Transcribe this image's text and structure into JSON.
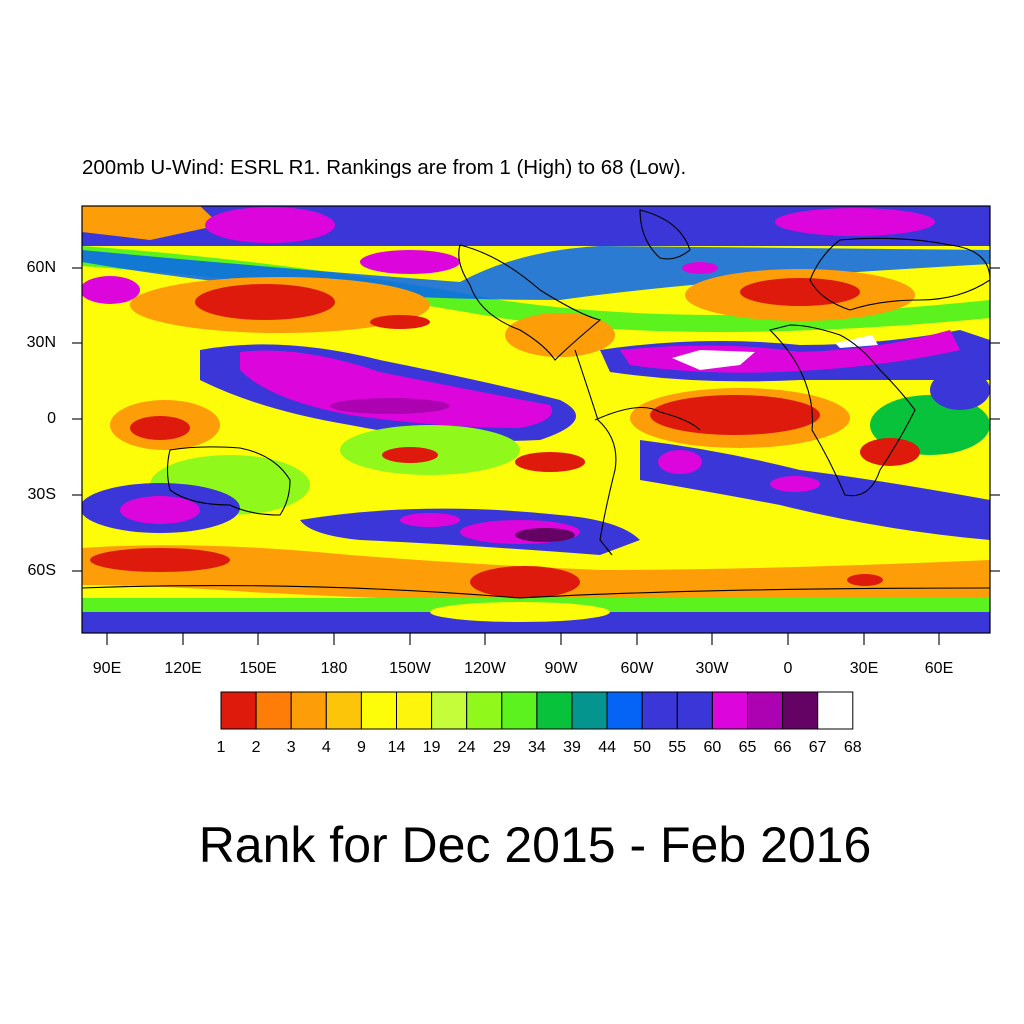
{
  "title": "200mb U-Wind: ESRL R1. Rankings are from 1 (High) to 68 (Low).",
  "bottom_title": "Rank for Dec 2015 - Feb 2016",
  "lat_labels": [
    "60N",
    "30N",
    "0",
    "30S",
    "60S"
  ],
  "lon_labels": [
    "90E",
    "120E",
    "150E",
    "180",
    "150W",
    "120W",
    "90W",
    "60W",
    "30W",
    "0",
    "30E",
    "60E"
  ],
  "colorbar": {
    "labels": [
      "1",
      "2",
      "3",
      "4",
      "9",
      "14",
      "19",
      "24",
      "29",
      "34",
      "39",
      "44",
      "50",
      "55",
      "60",
      "65",
      "66",
      "67",
      "68"
    ],
    "colors": [
      "#dd1a0c",
      "#fd7d08",
      "#fd9d08",
      "#fdc50a",
      "#fdfd09",
      "#fdf50b",
      "#c6fd3b",
      "#90f91b",
      "#5bf21e",
      "#07c23a",
      "#04968e",
      "#0564f5",
      "#3a36d8",
      "#3a36d8",
      "#dc06dd",
      "#ad02b2",
      "#640363",
      "#ffffff"
    ]
  }
}
